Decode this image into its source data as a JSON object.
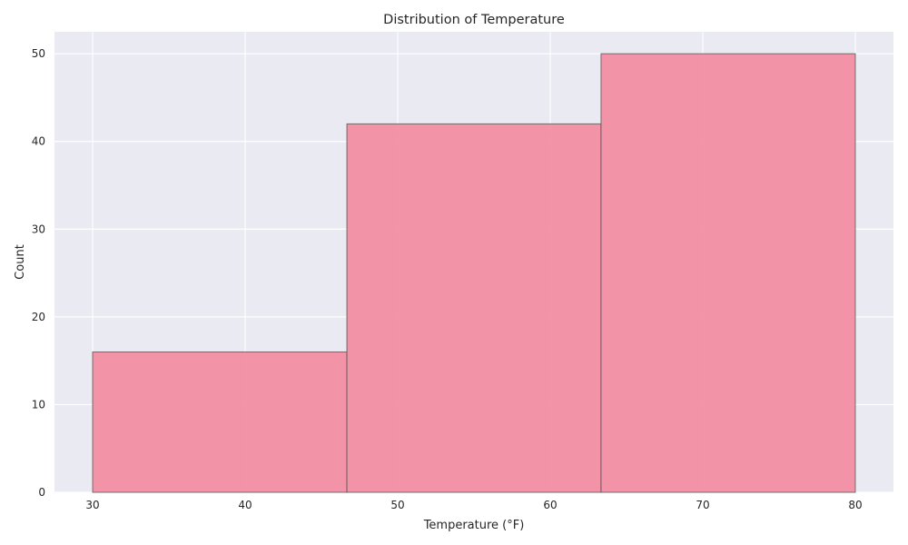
{
  "chart_data": {
    "type": "bar",
    "subtype": "histogram",
    "title": "Distribution of Temperature",
    "xlabel": "Temperature (°F)",
    "ylabel": "Count",
    "bins": [
      {
        "start": 30.0,
        "end": 46.67,
        "count": 16
      },
      {
        "start": 46.67,
        "end": 63.33,
        "count": 42
      },
      {
        "start": 63.33,
        "end": 80.0,
        "count": 50
      }
    ],
    "xlim": [
      27.5,
      82.5
    ],
    "ylim": [
      0,
      52.5
    ],
    "xticks": [
      30,
      40,
      50,
      60,
      70,
      80
    ],
    "yticks": [
      0,
      10,
      20,
      30,
      40,
      50
    ],
    "grid": true,
    "colors": {
      "bar_fill": "#f28ea3",
      "bar_edge": "#555555",
      "plot_background": "#eaeaf2",
      "gridline": "#ffffff"
    }
  }
}
